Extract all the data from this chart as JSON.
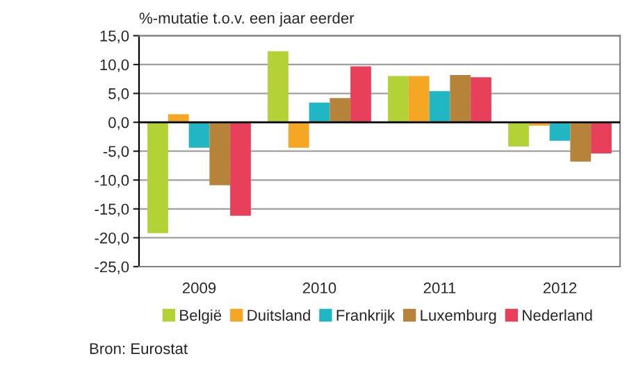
{
  "chart_data": {
    "type": "bar",
    "ylabel": "%-mutatie t.o.v. een jaar eerder",
    "categories": [
      "2009",
      "2010",
      "2011",
      "2012"
    ],
    "series": [
      {
        "name": "België",
        "color": "#b2d235",
        "values": [
          -19.2,
          12.3,
          8.0,
          -4.2
        ]
      },
      {
        "name": "Duitsland",
        "color": "#f5a623",
        "values": [
          1.4,
          -4.4,
          8.0,
          -0.6
        ]
      },
      {
        "name": "Frankrijk",
        "color": "#21b6c4",
        "values": [
          -4.4,
          3.4,
          5.4,
          -3.2
        ]
      },
      {
        "name": "Luxemburg",
        "color": "#b5843a",
        "values": [
          -10.9,
          4.2,
          8.2,
          -6.8
        ]
      },
      {
        "name": "Nederland",
        "color": "#e8405a",
        "values": [
          -16.2,
          9.7,
          7.8,
          -5.4
        ]
      }
    ],
    "ylim": [
      -25,
      15
    ],
    "yticks": [
      {
        "value": -25,
        "label": "-25,0"
      },
      {
        "value": -20,
        "label": "-20,0"
      },
      {
        "value": -15,
        "label": "-15,0"
      },
      {
        "value": -10,
        "label": "-10,0"
      },
      {
        "value": -5,
        "label": "-5,0"
      },
      {
        "value": 0,
        "label": "0,0"
      },
      {
        "value": 5,
        "label": "5,0"
      },
      {
        "value": 10,
        "label": "10,0"
      },
      {
        "value": 15,
        "label": "15,0"
      }
    ],
    "grid": "y",
    "legend": "bottom",
    "ref_lines": [
      {
        "axis": "y",
        "value": 0,
        "color": "#000000"
      }
    ],
    "annotations": [
      "Bron: Eurostat"
    ]
  }
}
